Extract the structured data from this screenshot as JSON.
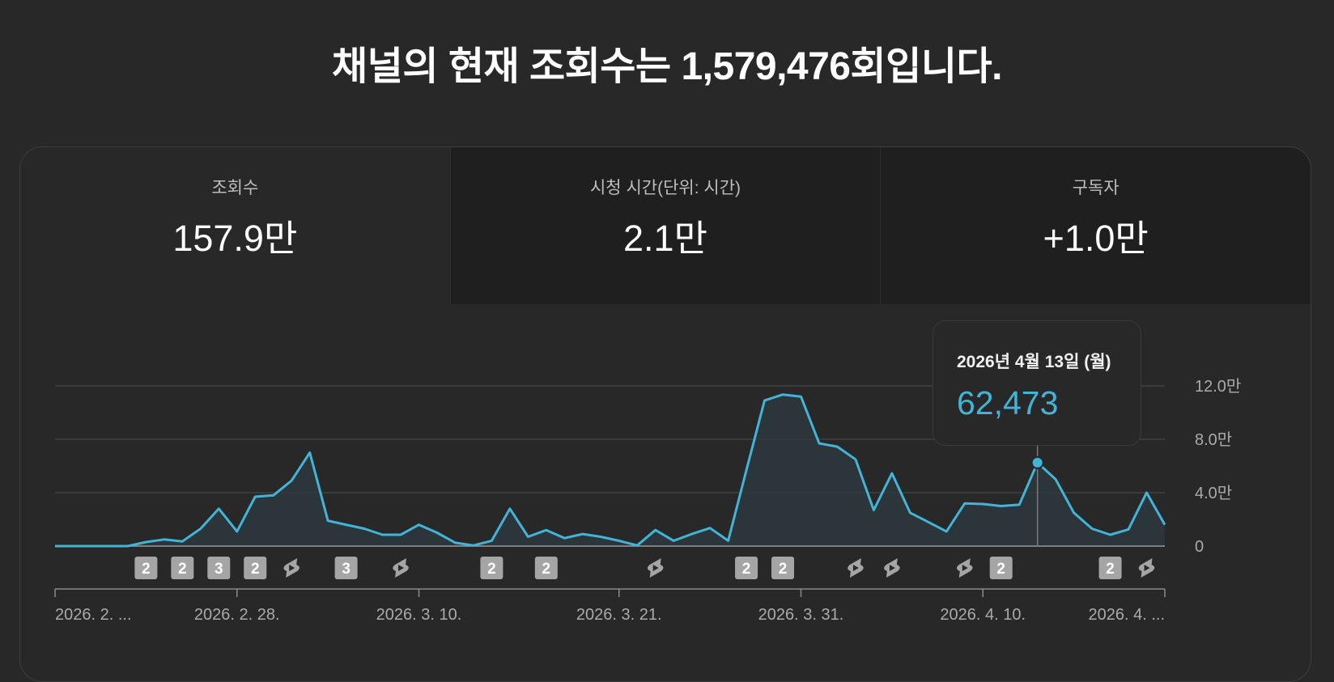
{
  "headline": "채널의 현재 조회수는 1,579,476회입니다.",
  "metrics": [
    {
      "label": "조회수",
      "value": "157.9만",
      "active": true
    },
    {
      "label": "시청 시간(단위: 시간)",
      "value": "2.1만",
      "active": false
    },
    {
      "label": "구독자",
      "value": "+1.0만",
      "active": false
    }
  ],
  "tooltip": {
    "date": "2026년 4월 13일 (월)",
    "value": "62,473"
  },
  "colors": {
    "line": "#41b4d8",
    "background": "#282828",
    "grid": "#454545",
    "marker": "#a5a5a5"
  },
  "chart_data": {
    "type": "area",
    "ylim": [
      0,
      120000
    ],
    "y_ticks": [
      {
        "value": 0,
        "label": "0"
      },
      {
        "value": 40000,
        "label": "4.0만"
      },
      {
        "value": 80000,
        "label": "8.0만"
      },
      {
        "value": 120000,
        "label": "12.0만"
      }
    ],
    "x_ticks": [
      {
        "day": 0,
        "label": "2026. 2. ..."
      },
      {
        "day": 10,
        "label": "2026. 2. 28."
      },
      {
        "day": 20,
        "label": "2026. 3. 10."
      },
      {
        "day": 31,
        "label": "2026. 3. 21."
      },
      {
        "day": 41,
        "label": "2026. 3. 31."
      },
      {
        "day": 51,
        "label": "2026. 4. 10."
      },
      {
        "day": 61,
        "label": "2026. 4. ..."
      }
    ],
    "series": [
      {
        "values": [
          0,
          0,
          0,
          0,
          0,
          3000,
          5000,
          3500,
          13000,
          28000,
          11000,
          37000,
          38000,
          49000,
          70000,
          19000,
          16000,
          13000,
          8500,
          8500,
          16000,
          10000,
          2500,
          500,
          4000,
          28000,
          7000,
          12000,
          6000,
          9000,
          7000,
          4000,
          500,
          12000,
          4000,
          9000,
          13500,
          4000,
          57000,
          109000,
          113500,
          112000,
          77000,
          74500,
          65000,
          27000,
          54500,
          25000,
          18000,
          11000,
          32000,
          31500,
          30000,
          31000,
          62473,
          50000,
          25000,
          13000,
          8500,
          12500,
          40000,
          16000
        ]
      }
    ],
    "highlight_index": 54,
    "video_markers": [
      {
        "day": 5,
        "type": "count",
        "label": "2"
      },
      {
        "day": 7,
        "type": "count",
        "label": "2"
      },
      {
        "day": 9,
        "type": "count",
        "label": "3"
      },
      {
        "day": 11,
        "type": "count",
        "label": "2"
      },
      {
        "day": 13,
        "type": "shorts",
        "label": ""
      },
      {
        "day": 16,
        "type": "count",
        "label": "3"
      },
      {
        "day": 19,
        "type": "shorts",
        "label": ""
      },
      {
        "day": 24,
        "type": "count",
        "label": "2"
      },
      {
        "day": 27,
        "type": "count",
        "label": "2"
      },
      {
        "day": 33,
        "type": "shorts",
        "label": ""
      },
      {
        "day": 38,
        "type": "count",
        "label": "2"
      },
      {
        "day": 40,
        "type": "count",
        "label": "2"
      },
      {
        "day": 44,
        "type": "shorts",
        "label": ""
      },
      {
        "day": 46,
        "type": "shorts",
        "label": ""
      },
      {
        "day": 50,
        "type": "shorts",
        "label": ""
      },
      {
        "day": 52,
        "type": "count",
        "label": "2"
      },
      {
        "day": 58,
        "type": "count",
        "label": "2"
      },
      {
        "day": 60,
        "type": "shorts",
        "label": ""
      }
    ]
  }
}
